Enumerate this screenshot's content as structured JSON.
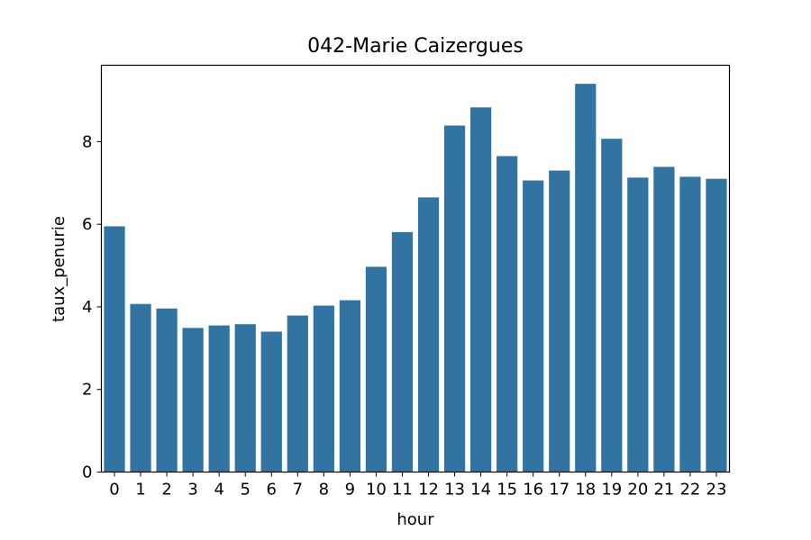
{
  "chart_data": {
    "type": "bar",
    "title": "042-Marie Caizergues",
    "xlabel": "hour",
    "ylabel": "taux_penurie",
    "categories": [
      "0",
      "1",
      "2",
      "3",
      "4",
      "5",
      "6",
      "7",
      "8",
      "9",
      "10",
      "11",
      "12",
      "13",
      "14",
      "15",
      "16",
      "17",
      "18",
      "19",
      "20",
      "21",
      "22",
      "23"
    ],
    "values": [
      5.95,
      4.07,
      3.96,
      3.49,
      3.55,
      3.58,
      3.4,
      3.79,
      4.03,
      4.16,
      4.97,
      5.81,
      6.65,
      8.39,
      8.83,
      7.65,
      7.06,
      7.3,
      9.4,
      8.07,
      7.13,
      7.39,
      7.15,
      7.1
    ],
    "ylim": [
      0,
      9.85
    ],
    "yticks": [
      0,
      2,
      4,
      6,
      8
    ],
    "grid": false,
    "legend": "none",
    "bar_color": "#3274a1"
  }
}
